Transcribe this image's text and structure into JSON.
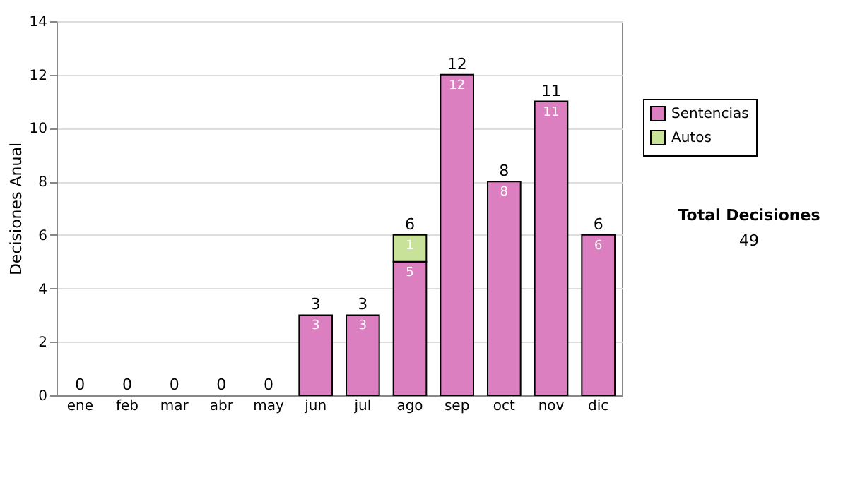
{
  "chart_data": {
    "type": "bar",
    "stacked": true,
    "ylabel": "Decisiones Anual",
    "categories": [
      "ene",
      "feb",
      "mar",
      "abr",
      "may",
      "jun",
      "jul",
      "ago",
      "sep",
      "oct",
      "nov",
      "dic"
    ],
    "series": [
      {
        "name": "Sentencias",
        "color": "#db7fc0",
        "values": [
          0,
          0,
          0,
          0,
          0,
          3,
          3,
          5,
          12,
          8,
          11,
          6
        ],
        "value_labels": [
          null,
          null,
          null,
          null,
          null,
          "3",
          "3",
          "5",
          "12",
          "8",
          "11",
          "6"
        ]
      },
      {
        "name": "Autos",
        "color": "#c8e29a",
        "values": [
          0,
          0,
          0,
          0,
          0,
          0,
          0,
          1,
          0,
          0,
          0,
          0
        ],
        "value_labels": [
          null,
          null,
          null,
          null,
          null,
          null,
          null,
          "1",
          null,
          null,
          null,
          null
        ]
      }
    ],
    "totals": [
      "0",
      "0",
      "0",
      "0",
      "0",
      "3",
      "3",
      "6",
      "12",
      "8",
      "11",
      "6"
    ],
    "ylim": [
      0,
      14
    ],
    "yticks": [
      0,
      2,
      4,
      6,
      8,
      10,
      12,
      14
    ],
    "grid": "y",
    "legend": "right",
    "annotations": [
      "Total Decisiones",
      "49"
    ]
  }
}
